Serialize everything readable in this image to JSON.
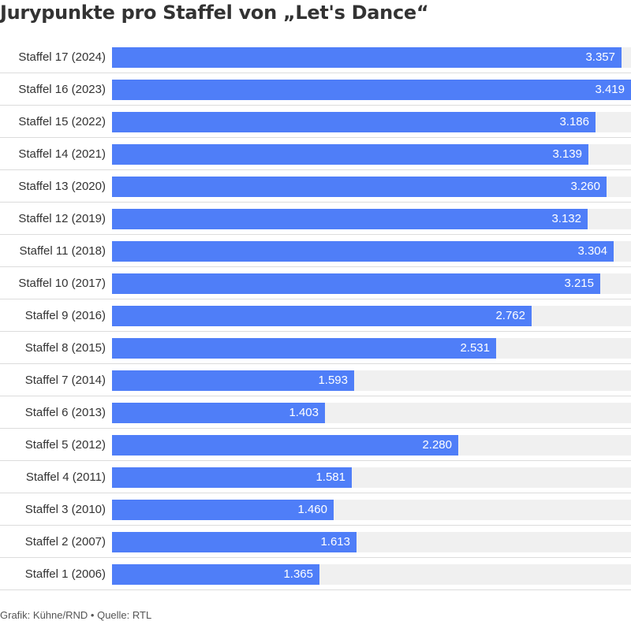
{
  "title": "Jurypunkte pro Staffel von „Let's Dance“",
  "footer": {
    "credit": "Grafik: Kühne/RND",
    "separator": "•",
    "source": "Quelle: RTL"
  },
  "colors": {
    "bar": "#4f7ef8",
    "track": "#f0f0f0",
    "divider": "#dcdcdc",
    "text": "#333333",
    "value_text": "#ffffff"
  },
  "chart_data": {
    "type": "bar",
    "orientation": "horizontal",
    "title": "Jurypunkte pro Staffel von „Let's Dance“",
    "xlim": [
      0,
      3419
    ],
    "categories": [
      "Staffel 17 (2024)",
      "Staffel 16 (2023)",
      "Staffel 15 (2022)",
      "Staffel 14 (2021)",
      "Staffel 13 (2020)",
      "Staffel 12 (2019)",
      "Staffel 11 (2018)",
      "Staffel 10 (2017)",
      "Staffel 9 (2016)",
      "Staffel 8 (2015)",
      "Staffel 7 (2014)",
      "Staffel 6 (2013)",
      "Staffel 5 (2012)",
      "Staffel 4 (2011)",
      "Staffel 3 (2010)",
      "Staffel 2 (2007)",
      "Staffel 1 (2006)"
    ],
    "values": [
      3357,
      3419,
      3186,
      3139,
      3260,
      3132,
      3304,
      3215,
      2762,
      2531,
      1593,
      1403,
      2280,
      1581,
      1460,
      1613,
      1365
    ],
    "value_labels": [
      "3.357",
      "3.419",
      "3.186",
      "3.139",
      "3.260",
      "3.132",
      "3.304",
      "3.215",
      "2.762",
      "2.531",
      "1.593",
      "1.403",
      "2.280",
      "1.581",
      "1.460",
      "1.613",
      "1.365"
    ]
  }
}
